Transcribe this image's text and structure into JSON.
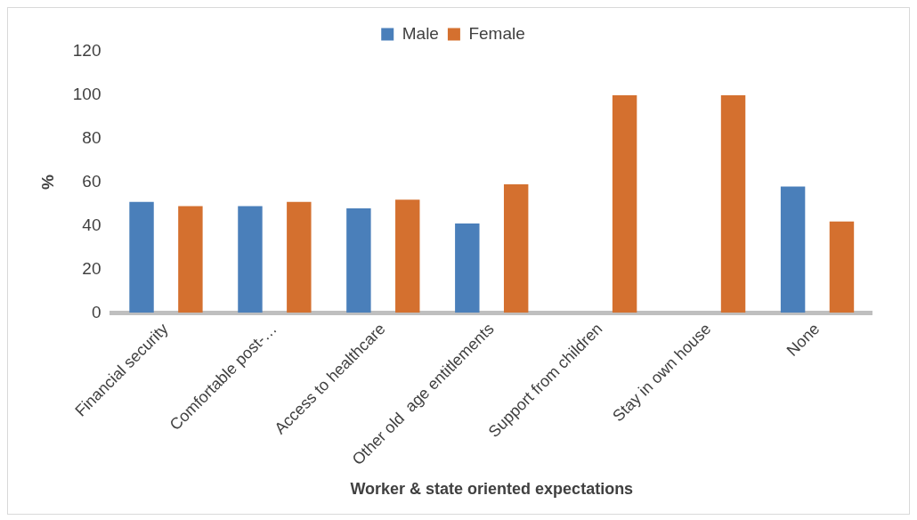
{
  "chart_data": {
    "type": "bar",
    "categories": [
      "Financial security",
      "Comfortable post-…",
      "Access to healthcare",
      "Other old  age entitlements",
      "Support from children",
      "Stay in own house",
      "None"
    ],
    "series": [
      {
        "name": "Male",
        "color": "#4a7fba",
        "values": [
          51,
          49,
          48,
          41,
          0,
          0,
          58
        ]
      },
      {
        "name": "Female",
        "color": "#d4702f",
        "values": [
          49,
          51,
          52,
          59,
          100,
          100,
          42
        ]
      }
    ],
    "xlabel": "Worker & state oriented expectations",
    "ylabel": "%",
    "ylim": [
      0,
      120
    ],
    "yticks": [
      0,
      20,
      40,
      60,
      80,
      100,
      120
    ],
    "grid": false,
    "legend": "top"
  }
}
